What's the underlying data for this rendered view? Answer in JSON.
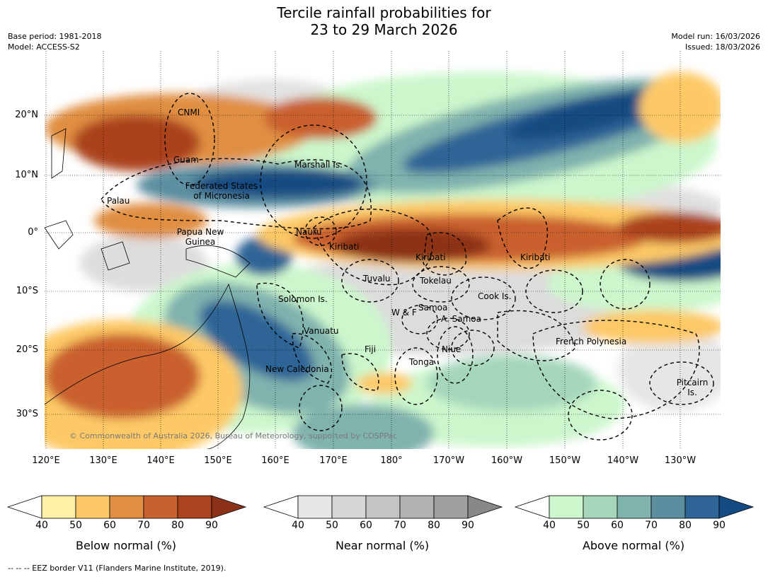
{
  "header": {
    "title_line1": "Tercile rainfall probabilities for",
    "title_line2": "23 to 29 March 2026",
    "base_period": "Base period: 1981-2018",
    "model": "Model: ACCESS-S2",
    "model_run": "Model run: 16/03/2026",
    "issued": "Issued: 18/03/2026"
  },
  "map": {
    "copyright": "© Commonwealth of Australia 2026, Bureau of Meteorology, supported by COSPPac",
    "lat_labels": [
      "20°N",
      "10°N",
      "0°",
      "10°S",
      "20°S",
      "30°S"
    ],
    "lon_labels": [
      "120°E",
      "130°E",
      "140°E",
      "150°E",
      "160°E",
      "170°E",
      "180°",
      "170°W",
      "160°W",
      "150°W",
      "140°W",
      "130°W"
    ],
    "regions": {
      "cnmi": "CNMI",
      "guam": "Guam",
      "marshall": "Marshall Is.",
      "fsm_line1": "Federated States",
      "fsm_line2": "of Micronesia",
      "palau": "Palau",
      "png_line1": "Papua New",
      "png_line2": "Guinea",
      "nauru": "Nauru",
      "kiribati_w": "Kiribati",
      "kiribati_c": "Kiribati",
      "kiribati_e": "Kiribati",
      "tuvalu": "Tuvalu",
      "tokelau": "Tokelau",
      "cook": "Cook Is.",
      "solomon": "Solomon Is.",
      "wf": "W & F",
      "samoa": "Samoa",
      "asamoa": "A. Samoa",
      "vanuatu": "Vanuatu",
      "fiji": "Fiji",
      "niue": "Niue",
      "tonga": "Tonga",
      "french_polynesia": "French Polynesia",
      "newcal": "New Caledonia",
      "pitcairn_line1": "Pitcairn",
      "pitcairn_line2": "Is."
    }
  },
  "colorbars": {
    "ticks": [
      "40",
      "50",
      "60",
      "70",
      "80",
      "90"
    ],
    "below": {
      "label": "Below normal (%)",
      "colors": [
        "#fff0a8",
        "#fdc966",
        "#e08f42",
        "#c9612f",
        "#ab431f",
        "#8c3219"
      ]
    },
    "near": {
      "label": "Near normal (%)",
      "colors": [
        "#e6e6e6",
        "#d6d6d6",
        "#c4c4c4",
        "#b2b2b2",
        "#9f9f9f",
        "#888888"
      ]
    },
    "above": {
      "label": "Above normal (%)",
      "colors": [
        "#ccf7cc",
        "#a5d6bb",
        "#80b2ae",
        "#5b8fa0",
        "#2f6596",
        "#134b82"
      ]
    }
  },
  "footer": "--  --  -- EEZ border V11 (Flanders Marine Institute, 2019)."
}
